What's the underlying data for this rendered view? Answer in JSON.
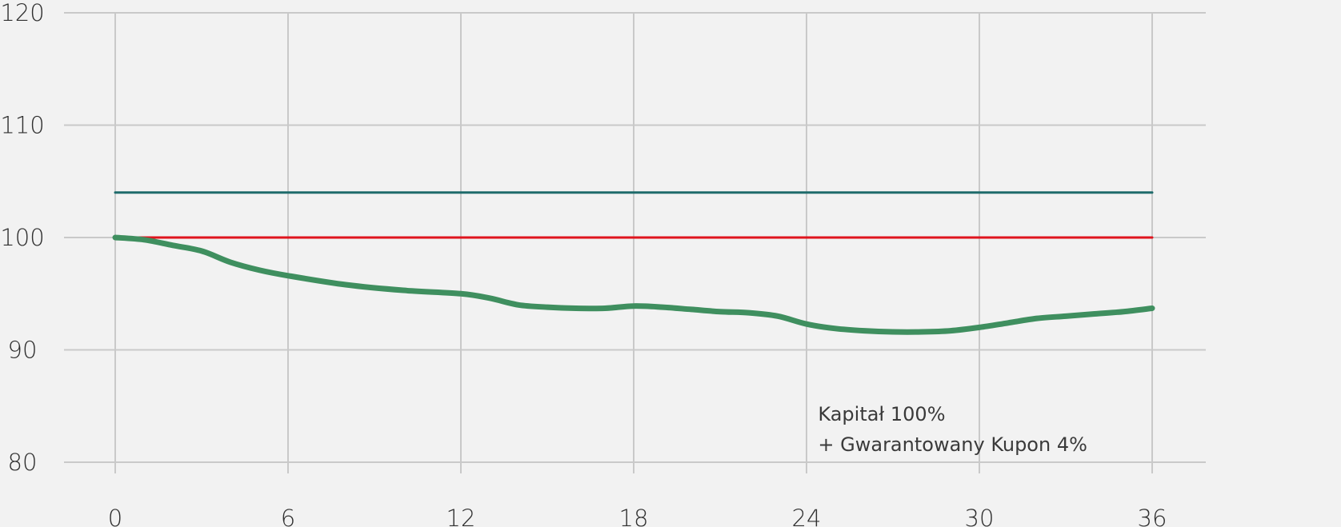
{
  "chart_data": {
    "type": "line",
    "title": "",
    "xlabel": "",
    "ylabel": "",
    "xlim": [
      0,
      36
    ],
    "ylim": [
      80,
      120
    ],
    "x_ticks": [
      0,
      6,
      12,
      18,
      24,
      30,
      36
    ],
    "y_ticks": [
      80,
      90,
      100,
      110,
      120
    ],
    "grid": true,
    "series": [
      {
        "color": "#1f6b6b",
        "x": [
          0,
          36
        ],
        "y": [
          104,
          104
        ]
      },
      {
        "color": "#e0141e",
        "x": [
          0,
          36
        ],
        "y": [
          100,
          100
        ]
      },
      {
        "color": "#3f8f5f",
        "x": [
          0,
          1,
          2,
          3,
          4,
          5,
          6,
          8,
          10,
          12,
          13,
          14,
          15,
          16,
          17,
          18,
          19,
          20,
          21,
          22,
          23,
          24,
          25,
          26,
          27,
          28,
          29,
          30,
          31,
          32,
          33,
          34,
          35,
          36
        ],
        "y": [
          100,
          99.8,
          99.3,
          98.8,
          97.8,
          97.1,
          96.6,
          95.8,
          95.3,
          95.0,
          94.6,
          94.0,
          93.8,
          93.7,
          93.7,
          93.9,
          93.8,
          93.6,
          93.4,
          93.3,
          93.0,
          92.3,
          91.9,
          91.7,
          91.6,
          91.6,
          91.7,
          92.0,
          92.4,
          92.8,
          93.0,
          93.2,
          93.4,
          93.7
        ]
      }
    ],
    "annotations": [
      {
        "text": "Kapitał 100%",
        "x": 24.4,
        "y": 83.7
      },
      {
        "text": "+ Gwarantowany Kupon 4%",
        "x": 24.4,
        "y": 81.0
      }
    ]
  }
}
